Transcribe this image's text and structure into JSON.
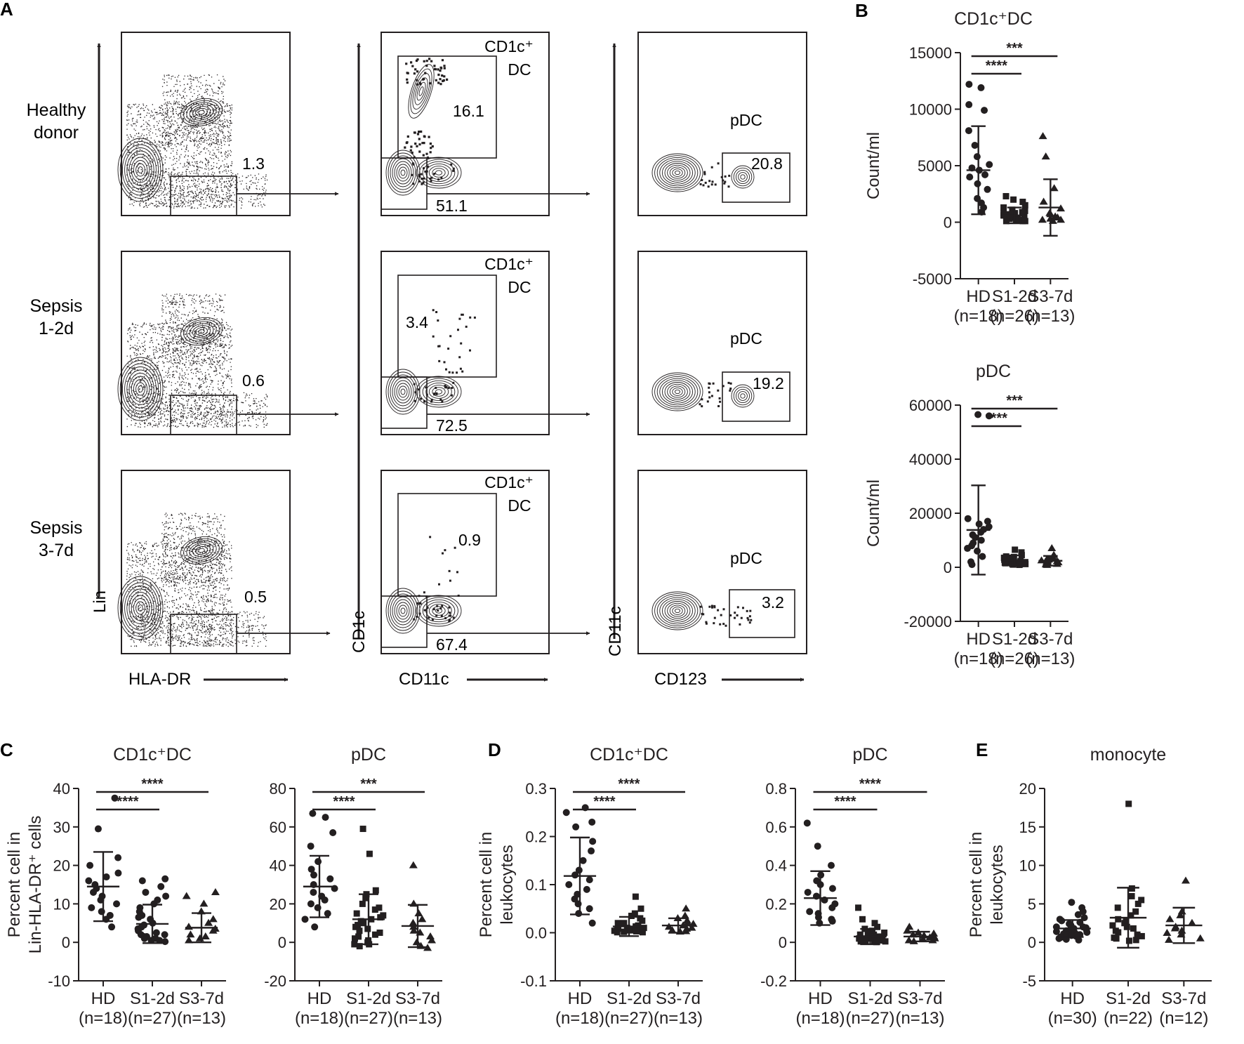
{
  "panel_letters": [
    "A",
    "B",
    "C",
    "D",
    "E"
  ],
  "row_labels": [
    [
      "Healthy",
      "donor"
    ],
    [
      "Sepsis",
      "1-2d"
    ],
    [
      "Sepsis",
      "3-7d"
    ]
  ],
  "flow_axes": {
    "col1": {
      "y": "Lin",
      "x": "HLA-DR"
    },
    "col2": {
      "y": "CD1c",
      "x": "CD11c"
    },
    "col3": {
      "y": "CD11c",
      "x": "CD123"
    }
  },
  "gate_labels": {
    "cd1c_line1": "CD1c⁺",
    "cd1c_line2": "DC",
    "pdc": "pDC"
  },
  "gate_values": {
    "col1": [
      "1.3",
      "0.6",
      "0.5"
    ],
    "col2_upper": [
      "16.1",
      "3.4",
      "0.9"
    ],
    "col2_lower": [
      "51.1",
      "72.5",
      "67.4"
    ],
    "col3": [
      "20.8",
      "19.2",
      "3.2"
    ]
  },
  "colors": {
    "ink": "#231f20"
  },
  "chart_data": [
    {
      "id": "B-cd1c",
      "type": "scatter",
      "title": "CD1c⁺DC",
      "ylabel": "Count/ml",
      "ylim": [
        -5000,
        15000
      ],
      "yticks": [
        15000,
        10000,
        5000,
        0,
        -5000
      ],
      "categories": [
        [
          "HD",
          "(n=18)"
        ],
        [
          "S1-2d",
          "(n=26)"
        ],
        [
          "S3-7d",
          "(n=13)"
        ]
      ],
      "markers": [
        "circle",
        "square",
        "triangle"
      ],
      "series": [
        {
          "mean": 4600,
          "sd": 3900,
          "values": [
            12200,
            11900,
            10400,
            9900,
            8100,
            6800,
            5800,
            5100,
            4800,
            4600,
            4200,
            4000,
            3400,
            2900,
            2100,
            1700,
            1300,
            900
          ]
        },
        {
          "mean": 600,
          "sd": 700,
          "values": [
            2300,
            2000,
            1800,
            1500,
            1300,
            1100,
            1000,
            900,
            800,
            800,
            700,
            700,
            600,
            600,
            500,
            500,
            400,
            400,
            300,
            300,
            200,
            200,
            200,
            100,
            100,
            100
          ]
        },
        {
          "mean": 1300,
          "sd": 2500,
          "values": [
            7600,
            5800,
            3000,
            1800,
            1200,
            800,
            700,
            500,
            400,
            300,
            200,
            200,
            100
          ]
        }
      ],
      "brackets": [
        {
          "from": 0,
          "to": 1,
          "label": "****"
        },
        {
          "from": 0,
          "to": 2,
          "label": "***"
        }
      ]
    },
    {
      "id": "B-pdc",
      "type": "scatter",
      "title": "pDC",
      "ylabel": "Count/ml",
      "ylim": [
        -20000,
        60000
      ],
      "yticks": [
        60000,
        40000,
        20000,
        0,
        -20000
      ],
      "categories": [
        [
          "HD",
          "(n=18)"
        ],
        [
          "S1-2d",
          "(n=26)"
        ],
        [
          "S3-7d",
          "(n=13)"
        ]
      ],
      "markers": [
        "circle",
        "square",
        "triangle"
      ],
      "series": [
        {
          "mean": 13800,
          "sd": 16500,
          "values": [
            56500,
            56000,
            18000,
            17000,
            16000,
            15000,
            14000,
            13000,
            12000,
            11000,
            10000,
            9000,
            8000,
            7000,
            6000,
            4000,
            2000,
            1000
          ]
        },
        {
          "mean": 2600,
          "sd": 1800,
          "values": [
            6500,
            5500,
            4500,
            4000,
            3800,
            3500,
            3200,
            3000,
            2800,
            2700,
            2500,
            2400,
            2300,
            2200,
            2000,
            1900,
            1800,
            1700,
            1600,
            1500,
            1400,
            1300,
            1200,
            1100,
            1000,
            900
          ]
        },
        {
          "mean": 2400,
          "sd": 1800,
          "values": [
            7000,
            4500,
            3500,
            3000,
            2800,
            2500,
            2200,
            2000,
            1800,
            1500,
            1200,
            1000,
            800
          ]
        }
      ],
      "brackets": [
        {
          "from": 0,
          "to": 1,
          "label": "****"
        },
        {
          "from": 0,
          "to": 2,
          "label": "***"
        }
      ]
    },
    {
      "id": "C-cd1c",
      "type": "scatter",
      "title": "CD1c⁺DC",
      "ylabel": [
        "Percent cell in",
        "Lin-HLA-DR⁺ cells"
      ],
      "ylim": [
        -10,
        40
      ],
      "yticks": [
        40,
        30,
        20,
        10,
        0,
        -10
      ],
      "categories": [
        [
          "HD",
          "(n=18)"
        ],
        [
          "S1-2d",
          "(n=27)"
        ],
        [
          "S3-7d",
          "(n=13)"
        ]
      ],
      "markers": [
        "circle",
        "circle",
        "triangle"
      ],
      "series": [
        {
          "mean": 14.5,
          "sd": 9,
          "values": [
            37.5,
            29.5,
            22,
            20,
            18,
            17,
            16,
            15,
            14,
            13,
            12,
            11,
            10,
            9,
            8,
            7,
            6,
            4
          ]
        },
        {
          "mean": 4.8,
          "sd": 5,
          "values": [
            16.5,
            16,
            14.5,
            13,
            12,
            11,
            10,
            9,
            8,
            7,
            6.5,
            6,
            5,
            4.5,
            4,
            3.5,
            3,
            2.5,
            2,
            2,
            1.5,
            1.5,
            1,
            1,
            0.5,
            0.5,
            0.2
          ]
        },
        {
          "mean": 3.8,
          "sd": 3.8,
          "values": [
            13,
            12,
            10,
            8,
            6,
            5,
            4,
            3.5,
            3,
            2,
            1.5,
            1,
            0.5
          ]
        }
      ],
      "brackets": [
        {
          "from": 0,
          "to": 1,
          "label": "****"
        },
        {
          "from": 0,
          "to": 2,
          "label": "****"
        }
      ]
    },
    {
      "id": "C-pdc",
      "type": "scatter",
      "title": "pDC",
      "ylabel": "",
      "ylim": [
        -20,
        80
      ],
      "yticks": [
        80,
        60,
        40,
        20,
        0,
        -20
      ],
      "categories": [
        [
          "HD",
          "(n=18)"
        ],
        [
          "S1-2d",
          "(n=27)"
        ],
        [
          "S3-7d",
          "(n=13)"
        ]
      ],
      "markers": [
        "circle",
        "square",
        "triangle"
      ],
      "series": [
        {
          "mean": 29,
          "sd": 16,
          "values": [
            67,
            65,
            57,
            50,
            42,
            38,
            35,
            33,
            30,
            28,
            26,
            24,
            22,
            20,
            18,
            15,
            12,
            8
          ]
        },
        {
          "mean": 12,
          "sd": 13,
          "values": [
            59,
            46,
            27,
            25,
            23,
            20,
            18,
            17,
            15,
            14,
            13,
            12,
            11,
            10,
            9,
            8,
            7,
            6,
            5,
            4,
            3,
            2,
            1,
            0,
            -1,
            -2,
            -1
          ]
        },
        {
          "mean": 8.5,
          "sd": 11,
          "values": [
            40,
            20,
            15,
            12,
            10,
            8,
            6,
            5,
            3,
            1,
            0,
            -2,
            -3
          ]
        }
      ],
      "brackets": [
        {
          "from": 0,
          "to": 1,
          "label": "****"
        },
        {
          "from": 0,
          "to": 2,
          "label": "***"
        }
      ]
    },
    {
      "id": "D-cd1c",
      "type": "scatter",
      "title": "CD1c⁺DC",
      "ylabel": [
        "Percent cell in",
        "leukocytes"
      ],
      "ylim": [
        -0.1,
        0.3
      ],
      "yticks": [
        0.3,
        0.2,
        0.1,
        0.0,
        -0.1
      ],
      "ytick_labels": [
        "0.3",
        "0.2",
        "0.1",
        "0.0",
        "-0.1"
      ],
      "categories": [
        [
          "HD",
          "(n=18)"
        ],
        [
          "S1-2d",
          "(n=27)"
        ],
        [
          "S3-7d",
          "(n=13)"
        ]
      ],
      "markers": [
        "circle",
        "square",
        "triangle"
      ],
      "series": [
        {
          "mean": 0.118,
          "sd": 0.08,
          "values": [
            0.26,
            0.25,
            0.23,
            0.22,
            0.19,
            0.17,
            0.15,
            0.13,
            0.12,
            0.11,
            0.1,
            0.09,
            0.08,
            0.07,
            0.06,
            0.05,
            0.04,
            0.02
          ]
        },
        {
          "mean": 0.013,
          "sd": 0.02,
          "values": [
            0.075,
            0.05,
            0.04,
            0.035,
            0.03,
            0.025,
            0.02,
            0.02,
            0.018,
            0.015,
            0.013,
            0.012,
            0.01,
            0.01,
            0.009,
            0.008,
            0.007,
            0.006,
            0.005,
            0.005,
            0.004,
            0.003,
            0.003,
            0.002,
            0.002,
            0.001,
            0.001
          ]
        },
        {
          "mean": 0.015,
          "sd": 0.015,
          "values": [
            0.05,
            0.035,
            0.03,
            0.025,
            0.02,
            0.018,
            0.015,
            0.012,
            0.01,
            0.008,
            0.005,
            0.003,
            0.002
          ]
        }
      ],
      "brackets": [
        {
          "from": 0,
          "to": 1,
          "label": "****"
        },
        {
          "from": 0,
          "to": 2,
          "label": "****"
        }
      ]
    },
    {
      "id": "D-pdc",
      "type": "scatter",
      "title": "pDC",
      "ylabel": "",
      "ylim": [
        -0.2,
        0.8
      ],
      "yticks": [
        0.8,
        0.6,
        0.4,
        0.2,
        0,
        -0.2
      ],
      "ytick_labels": [
        "0.8",
        "0.6",
        "0.4",
        "0.2",
        "0",
        "-0.2"
      ],
      "categories": [
        [
          "HD",
          "(n=18)"
        ],
        [
          "S1-2d",
          "(n=27)"
        ],
        [
          "S3-7d",
          "(n=13)"
        ]
      ],
      "markers": [
        "circle",
        "square",
        "triangle"
      ],
      "series": [
        {
          "mean": 0.23,
          "sd": 0.14,
          "values": [
            0.62,
            0.5,
            0.4,
            0.35,
            0.32,
            0.3,
            0.28,
            0.26,
            0.24,
            0.22,
            0.2,
            0.18,
            0.16,
            0.15,
            0.13,
            0.12,
            0.11,
            0.1
          ]
        },
        {
          "mean": 0.03,
          "sd": 0.04,
          "values": [
            0.18,
            0.12,
            0.1,
            0.08,
            0.07,
            0.06,
            0.05,
            0.05,
            0.04,
            0.04,
            0.03,
            0.03,
            0.03,
            0.02,
            0.02,
            0.02,
            0.02,
            0.01,
            0.01,
            0.01,
            0.01,
            0.01,
            0.005,
            0.005,
            0.005,
            0.002,
            0.002
          ]
        },
        {
          "mean": 0.03,
          "sd": 0.025,
          "values": [
            0.08,
            0.06,
            0.05,
            0.045,
            0.04,
            0.035,
            0.03,
            0.025,
            0.02,
            0.015,
            0.01,
            0.01,
            0.005
          ]
        }
      ],
      "brackets": [
        {
          "from": 0,
          "to": 1,
          "label": "****"
        },
        {
          "from": 0,
          "to": 2,
          "label": "****"
        }
      ]
    },
    {
      "id": "E-mono",
      "type": "scatter",
      "title": "monocyte",
      "ylabel": [
        "Percent cell in",
        "leukocytes"
      ],
      "ylim": [
        -5,
        20
      ],
      "yticks": [
        20,
        15,
        10,
        5,
        0,
        -5
      ],
      "categories": [
        [
          "HD",
          "(n=30)"
        ],
        [
          "S1-2d",
          "(n=22)"
        ],
        [
          "S3-7d",
          "(n=12)"
        ]
      ],
      "markers": [
        "circle",
        "square",
        "triangle"
      ],
      "series": [
        {
          "mean": 1.8,
          "sd": 1.1,
          "values": [
            5.2,
            4.5,
            4,
            3.6,
            3.2,
            3,
            2.8,
            2.6,
            2.4,
            2.2,
            2,
            2,
            1.9,
            1.8,
            1.7,
            1.6,
            1.5,
            1.4,
            1.3,
            1.2,
            1.1,
            1,
            1,
            0.9,
            0.8,
            0.7,
            0.6,
            0.5,
            0.4,
            0.3
          ]
        },
        {
          "mean": 3.2,
          "sd": 3.9,
          "values": [
            18,
            7,
            6,
            5.5,
            5,
            4.5,
            4,
            3.5,
            3,
            2.8,
            2.5,
            2.2,
            2,
            1.8,
            1.5,
            1.3,
            1,
            0.8,
            0.6,
            0.5,
            0.3,
            0.2
          ]
        },
        {
          "mean": 2.2,
          "sd": 2.3,
          "values": [
            8,
            4,
            3.5,
            3,
            2.5,
            2,
            1.8,
            1.5,
            1.2,
            1,
            0.5,
            0.3
          ]
        }
      ],
      "brackets": []
    }
  ]
}
